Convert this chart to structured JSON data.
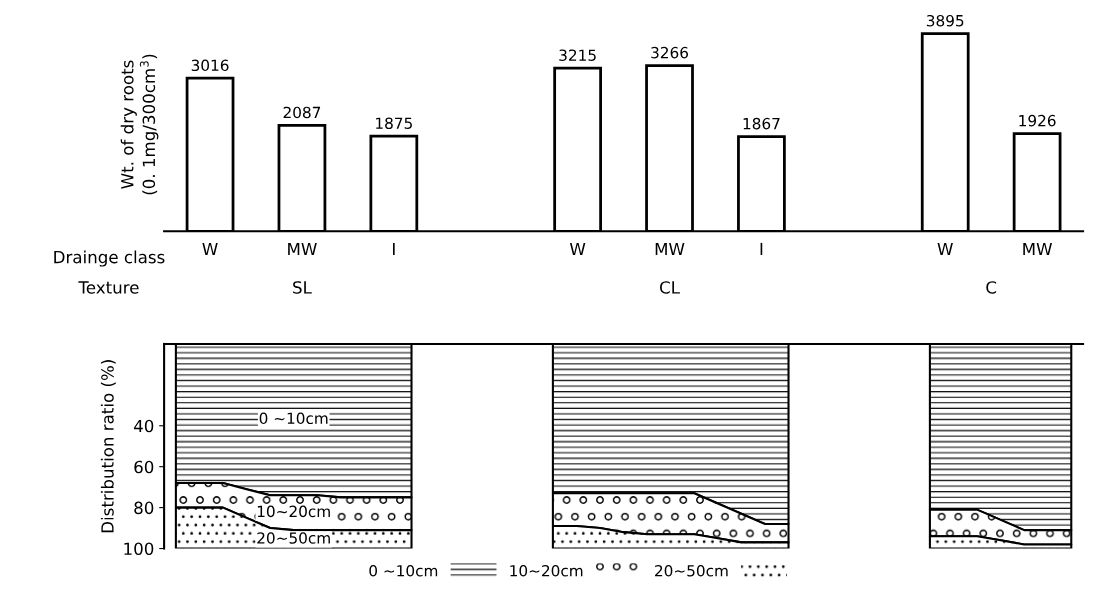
{
  "chart_data": [
    {
      "type": "bar",
      "ylabel": "Wt. of dry roots\n(0. 1mg/300cm$^{3}$)",
      "xlabel": "Drainge class",
      "categories": [
        "W",
        "MW",
        "I",
        null,
        "W",
        "MW",
        "I",
        null,
        "W",
        "MW"
      ],
      "values": [
        3016,
        2087,
        1875,
        null,
        3215,
        3266,
        1867,
        null,
        3895,
        1926
      ],
      "color": "#ffffff",
      "data_labels": true,
      "tick_labels": "x",
      "annotations": [
        "Texture",
        "SL",
        "CL",
        "C"
      ]
    },
    {
      "type": "area",
      "stacked": true,
      "ylabel": "Distribution ratio (%)",
      "categories": [
        null,
        null,
        null,
        null,
        null,
        null,
        null,
        null,
        null,
        null,
        null,
        null,
        null,
        null,
        null,
        null,
        null,
        null,
        null,
        null,
        null,
        null,
        null,
        null,
        null,
        null,
        null,
        null,
        null,
        null,
        null,
        null,
        null,
        null,
        null,
        null,
        null,
        null,
        null
      ],
      "series": [
        {
          "name": "0 ∼10cm",
          "color": "#000000",
          "values": [
            68,
            68,
            68,
            71,
            74,
            74,
            74,
            75,
            75,
            75,
            75,
            null,
            null,
            null,
            null,
            null,
            73,
            73,
            73,
            73,
            73,
            73,
            73,
            78,
            83,
            88,
            88,
            null,
            null,
            null,
            null,
            null,
            81,
            81,
            81,
            86,
            91,
            91,
            91
          ]
        },
        {
          "name": "10∼20cm",
          "color": "#000000",
          "values": [
            12,
            12,
            12,
            14,
            16,
            17,
            17,
            16,
            16,
            16,
            16,
            null,
            null,
            null,
            null,
            null,
            16,
            16,
            17,
            19,
            20,
            20,
            20,
            17,
            14,
            9,
            9,
            null,
            null,
            null,
            null,
            null,
            13,
            13,
            13,
            10,
            7,
            7,
            7
          ]
        },
        {
          "name": "20∼50cm",
          "color": "#000000",
          "values": [
            20,
            20,
            20,
            15,
            10,
            9,
            9,
            9,
            9,
            9,
            9,
            null,
            null,
            null,
            null,
            null,
            11,
            11,
            10,
            8,
            7,
            7,
            7,
            5,
            3,
            3,
            3,
            null,
            null,
            null,
            null,
            null,
            6,
            6,
            6,
            4,
            2,
            2,
            2
          ]
        }
      ],
      "ylim": [
        100,
        0
      ],
      "yticks": [
        40,
        60,
        80,
        100
      ],
      "tick_labels": "y",
      "legend": "bottom",
      "annotations": [
        "0 ∼10cm",
        "10∼20cm",
        "20∼50cm"
      ]
    }
  ]
}
